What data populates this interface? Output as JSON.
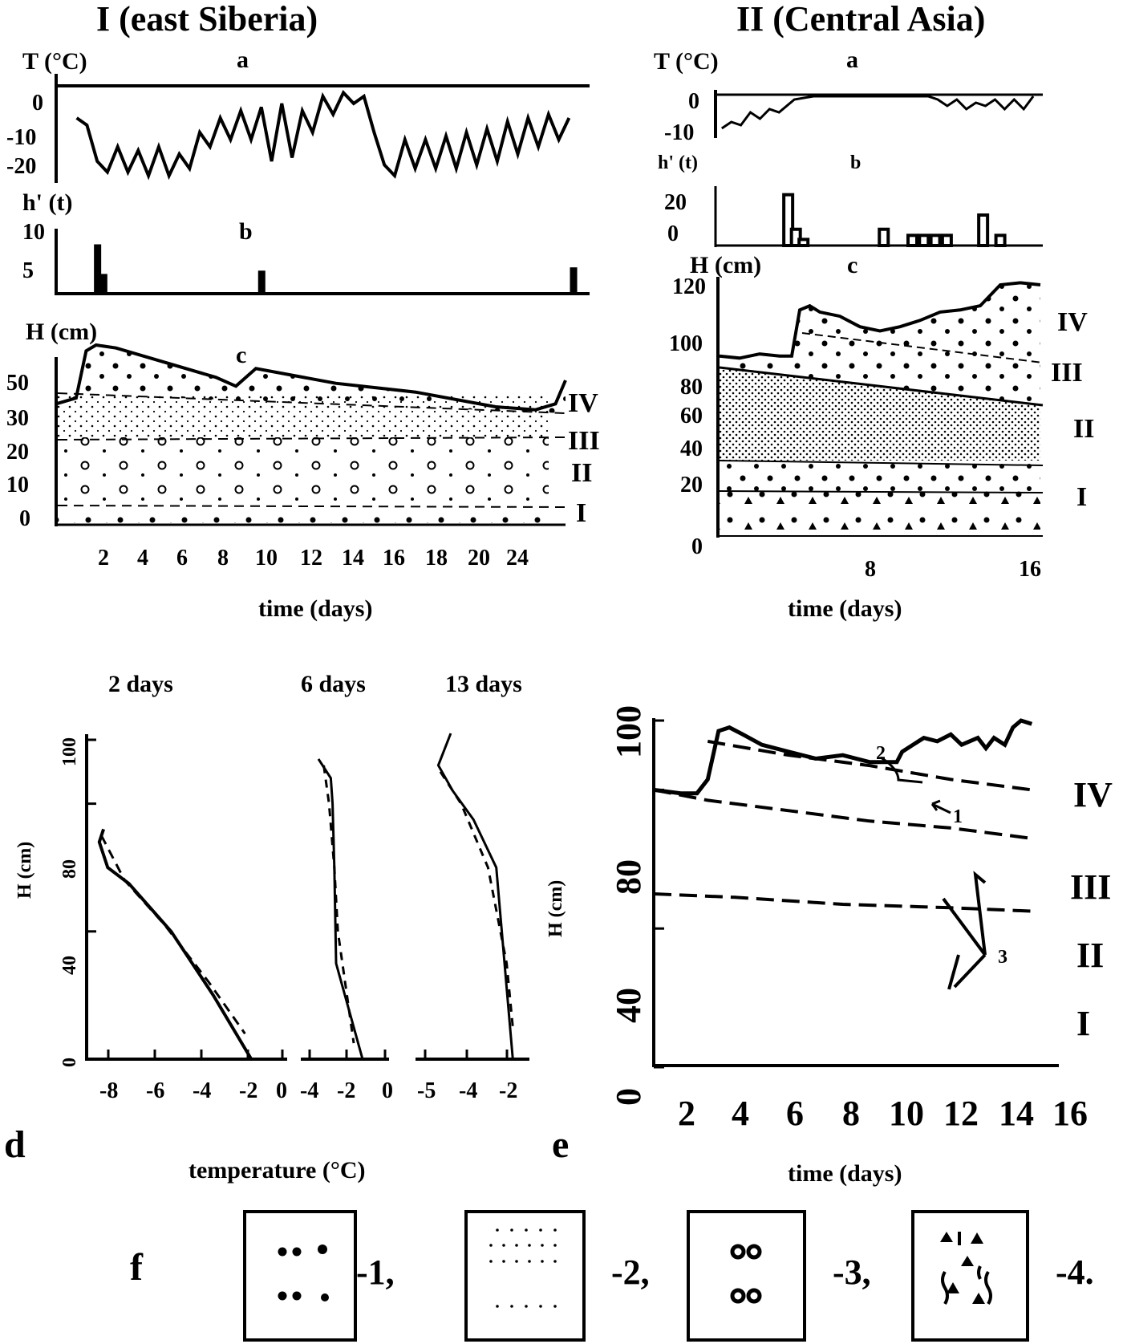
{
  "figure": {
    "title_I": "I (east Siberia)",
    "title_II": "II (Central Asia)",
    "panel_d_letter": "d",
    "panel_e_letter": "e",
    "panel_f_letter": "f"
  },
  "chart_data": [
    {
      "id": "I-a",
      "type": "line",
      "ylabel": "T (°C)",
      "panel_label": "a",
      "yticks": [
        "0",
        "-10",
        "-20"
      ],
      "ylim": [
        -25,
        3
      ],
      "series": [
        {
          "x": [
            1,
            1.5,
            2,
            2.5,
            3,
            3.5,
            4,
            4.5,
            5,
            5.5,
            6,
            6.5,
            7,
            7.5,
            8,
            8.5,
            9,
            9.5,
            10,
            10.5,
            11,
            11.5,
            12,
            12.5,
            13,
            13.5,
            14,
            14.5,
            15,
            15.5,
            16,
            16.5,
            17,
            17.5,
            18,
            18.5,
            19,
            19.5,
            20,
            20.5,
            21,
            21.5,
            22,
            22.5,
            23,
            23.5,
            24,
            24.5,
            25
          ],
          "y": [
            -6,
            -8,
            -18,
            -21,
            -14,
            -21,
            -15,
            -22,
            -14,
            -22,
            -16,
            -20,
            -10,
            -14,
            -6,
            -12,
            -4,
            -12,
            -3,
            -18,
            -2,
            -17,
            -4,
            -10,
            0,
            -5,
            1,
            -2,
            0,
            -10,
            -19,
            -22,
            -12,
            -20,
            -12,
            -20,
            -11,
            -20,
            -10,
            -19,
            -9,
            -18,
            -7,
            -16,
            -6,
            -14,
            -5,
            -12,
            -6
          ]
        }
      ]
    },
    {
      "id": "I-b",
      "type": "bar",
      "ylabel": "h' (t)",
      "panel_label": "b",
      "yticks": [
        "10",
        "5"
      ],
      "ylim": [
        0,
        10
      ],
      "x": [
        2,
        2.3,
        10,
        25.2
      ],
      "values": [
        7.5,
        3,
        3.5,
        4
      ]
    },
    {
      "id": "I-c",
      "type": "area",
      "ylabel": "H (cm)",
      "panel_label": "c",
      "xlabel": "time (days)",
      "yticks": [
        "50",
        "30",
        "20",
        "10",
        "0"
      ],
      "xticks": [
        "2",
        "4",
        "6",
        "8",
        "10",
        "12",
        "14",
        "16",
        "18",
        "20",
        "24"
      ],
      "layers": [
        "IV",
        "III",
        "II",
        "I"
      ],
      "surface": {
        "x": [
          0,
          1,
          1.5,
          2,
          3,
          8,
          9,
          10,
          14,
          18,
          22,
          24,
          25,
          25.5
        ],
        "y": [
          40,
          42,
          58,
          60,
          59,
          49,
          46,
          52,
          47,
          44,
          39,
          38,
          40,
          48
        ]
      }
    },
    {
      "id": "II-a",
      "type": "line",
      "ylabel": "T (°C)",
      "panel_label": "a",
      "yticks": [
        "0",
        "-10"
      ],
      "ylim": [
        -11,
        2
      ],
      "series": [
        {
          "x": [
            0.2,
            0.7,
            1.2,
            1.7,
            2.2,
            2.7,
            3.2,
            4,
            5,
            6,
            7,
            8,
            9,
            10,
            11,
            11.5,
            12,
            12.5,
            13,
            13.5,
            14,
            14.5,
            15,
            15.5,
            16,
            16.5
          ],
          "y": [
            -10,
            -8,
            -9,
            -5,
            -7,
            -4,
            -5,
            -1,
            0,
            0,
            0,
            0,
            0,
            0,
            0,
            -1,
            -3,
            -1,
            -4,
            -2,
            -3,
            -1,
            -4,
            -1,
            -4,
            0
          ]
        }
      ]
    },
    {
      "id": "II-b",
      "type": "bar",
      "ylabel": "h' (t)",
      "panel_label": "b",
      "yticks": [
        "20",
        "0"
      ],
      "ylim": [
        0,
        30
      ],
      "x": [
        3.7,
        4.1,
        4.5,
        8.7,
        10.2,
        10.8,
        11.4,
        12,
        13.9,
        14.8
      ],
      "values": [
        25,
        8,
        3,
        8,
        5,
        5,
        5,
        5,
        15,
        5
      ]
    },
    {
      "id": "II-c",
      "type": "area",
      "ylabel": "H (cm)",
      "panel_label": "c",
      "xlabel": "time (days)",
      "yticks": [
        "120",
        "100",
        "80",
        "60",
        "40",
        "20",
        "0"
      ],
      "xticks": [
        "8",
        "16"
      ],
      "layers": [
        "IV",
        "III",
        "II",
        "I"
      ],
      "surface": {
        "x": [
          0,
          1,
          2,
          3,
          3.6,
          4,
          4.5,
          5,
          6,
          7,
          8,
          9,
          10,
          11,
          12,
          13,
          14,
          15,
          16
        ],
        "y": [
          86,
          85,
          87,
          86,
          86,
          108,
          110,
          107,
          105,
          100,
          98,
          100,
          103,
          107,
          108,
          110,
          120,
          121,
          120
        ]
      }
    },
    {
      "id": "d-2days",
      "type": "line",
      "title": "2 days",
      "xlabel": "temperature (°C)",
      "ylabel": "H (cm)",
      "xticks": [
        "-8",
        "-6",
        "-4",
        "-2",
        "0"
      ],
      "yticks": [
        "0",
        "40",
        "80",
        "100"
      ],
      "xlim": [
        -9,
        0.5
      ],
      "ylim": [
        0,
        100
      ],
      "series": [
        {
          "x": [
            -8.2,
            -8.4,
            -8,
            -7,
            -5,
            -3,
            -1.2
          ],
          "y": [
            72,
            68,
            60,
            55,
            40,
            20,
            0
          ]
        },
        {
          "x": [
            -8.3,
            -7.2,
            -5.3,
            -3.2,
            -1.5
          ],
          "y": [
            70,
            56,
            42,
            24,
            8
          ],
          "dashed": true
        }
      ]
    },
    {
      "id": "d-6days",
      "type": "line",
      "title": "6 days",
      "xticks": [
        "-4",
        "-2",
        "0"
      ],
      "xlim": [
        -4.5,
        0.5
      ],
      "ylim": [
        0,
        100
      ],
      "series": [
        {
          "x": [
            -3.5,
            -2.8,
            -2.7,
            -2.6,
            -2.5,
            -1.5,
            -1
          ],
          "y": [
            94,
            88,
            80,
            60,
            30,
            10,
            0
          ]
        },
        {
          "x": [
            -3.2,
            -2.9,
            -2.6,
            -2.4,
            -1.5
          ],
          "y": [
            92,
            80,
            60,
            40,
            5
          ],
          "dashed": true
        }
      ]
    },
    {
      "id": "d-13days",
      "type": "line",
      "title": "13 days",
      "xticks": [
        "-5",
        "-4",
        "-2"
      ],
      "xlim": [
        -6,
        -0.5
      ],
      "ylim": [
        0,
        100
      ],
      "series": [
        {
          "x": [
            -4.3,
            -4.9,
            -4.2,
            -3.2,
            -2.1,
            -1.7,
            -1.3
          ],
          "y": [
            102,
            92,
            84,
            75,
            60,
            30,
            0
          ]
        },
        {
          "x": [
            -4.8,
            -3.8,
            -2.5,
            -1.6,
            -1.3
          ],
          "y": [
            90,
            80,
            60,
            30,
            10
          ],
          "dashed": true
        }
      ]
    },
    {
      "id": "e",
      "type": "line",
      "xlabel": "time (days)",
      "ylabel": "H (cm)",
      "xticks": [
        "2",
        "4",
        "6",
        "8",
        "10",
        "12",
        "14",
        "16"
      ],
      "yticks": [
        "0",
        "40",
        "80",
        "100"
      ],
      "xlim": [
        1,
        16
      ],
      "ylim": [
        0,
        105
      ],
      "layers": [
        "IV",
        "III",
        "II",
        "I"
      ],
      "arrow_labels": [
        "2",
        "1",
        "3"
      ],
      "series": [
        {
          "name": "surface",
          "x": [
            1,
            2,
            2.6,
            3,
            3.4,
            3.8,
            4.3,
            5,
            6,
            7,
            8,
            9,
            10,
            10.2,
            10.6,
            11,
            11.5,
            12,
            12.4,
            13,
            13.3,
            13.6,
            14,
            14.3,
            14.6,
            15
          ],
          "y": [
            80,
            79,
            79,
            83,
            97,
            98,
            96,
            93,
            91,
            89,
            90,
            88,
            88,
            91,
            93,
            95,
            94,
            96,
            93,
            95,
            92,
            95,
            93,
            98,
            100,
            99
          ]
        },
        {
          "name": "boundary IV/III",
          "x": [
            3,
            6,
            9,
            12,
            15
          ],
          "y": [
            94,
            90,
            87,
            83,
            80
          ],
          "dashed": true
        },
        {
          "name": "boundary III/II",
          "x": [
            1,
            3,
            6,
            9,
            12,
            15
          ],
          "y": [
            80,
            77,
            74,
            71,
            69,
            66
          ],
          "dashed": true
        },
        {
          "name": "boundary II/I",
          "x": [
            1,
            4,
            8,
            12,
            15
          ],
          "y": [
            50,
            49,
            47,
            46,
            45
          ],
          "dashed": true
        }
      ]
    }
  ],
  "legend_f": [
    {
      "symbol": "stars",
      "label": "-1,"
    },
    {
      "symbol": "dots",
      "label": "-2,"
    },
    {
      "symbol": "rings",
      "label": "-3,"
    },
    {
      "symbol": "hoar",
      "label": "-4."
    }
  ]
}
